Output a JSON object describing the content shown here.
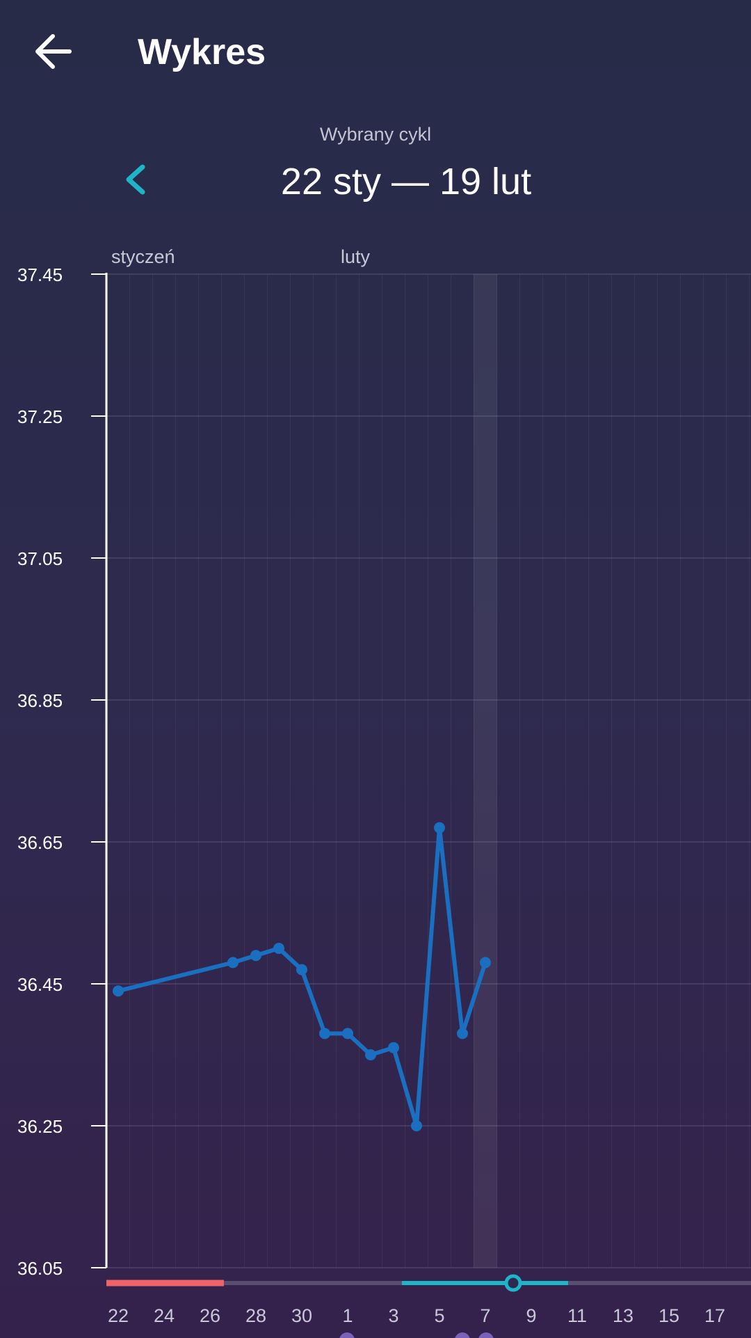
{
  "header": {
    "title": "Wykres"
  },
  "cycle": {
    "label": "Wybrany cykl",
    "range": "22 sty — 19 lut"
  },
  "chart_data": {
    "type": "line",
    "months": [
      {
        "label": "styczeń",
        "index": 0
      },
      {
        "label": "luty",
        "index": 10
      }
    ],
    "categories": [
      "22",
      null,
      "24",
      null,
      "26",
      null,
      "28",
      null,
      "30",
      null,
      "1",
      null,
      "3",
      null,
      "5",
      null,
      "7",
      null,
      "9",
      null,
      "11",
      null,
      "13",
      null,
      "15",
      null,
      "17",
      null
    ],
    "series": [
      {
        "color": "#1a6fc0",
        "x": [
          0,
          5,
          6,
          7,
          8,
          9,
          10,
          11,
          12,
          13,
          14,
          15,
          16
        ],
        "values": [
          36.44,
          36.48,
          36.49,
          36.5,
          36.47,
          36.38,
          36.38,
          36.35,
          36.36,
          36.25,
          36.67,
          36.38,
          36.48
        ]
      }
    ],
    "ylim": [
      36.05,
      37.45
    ],
    "yticks": [
      36.05,
      36.25,
      36.45,
      36.65,
      36.85,
      37.05,
      37.25,
      37.45
    ],
    "grid": true
  }
}
